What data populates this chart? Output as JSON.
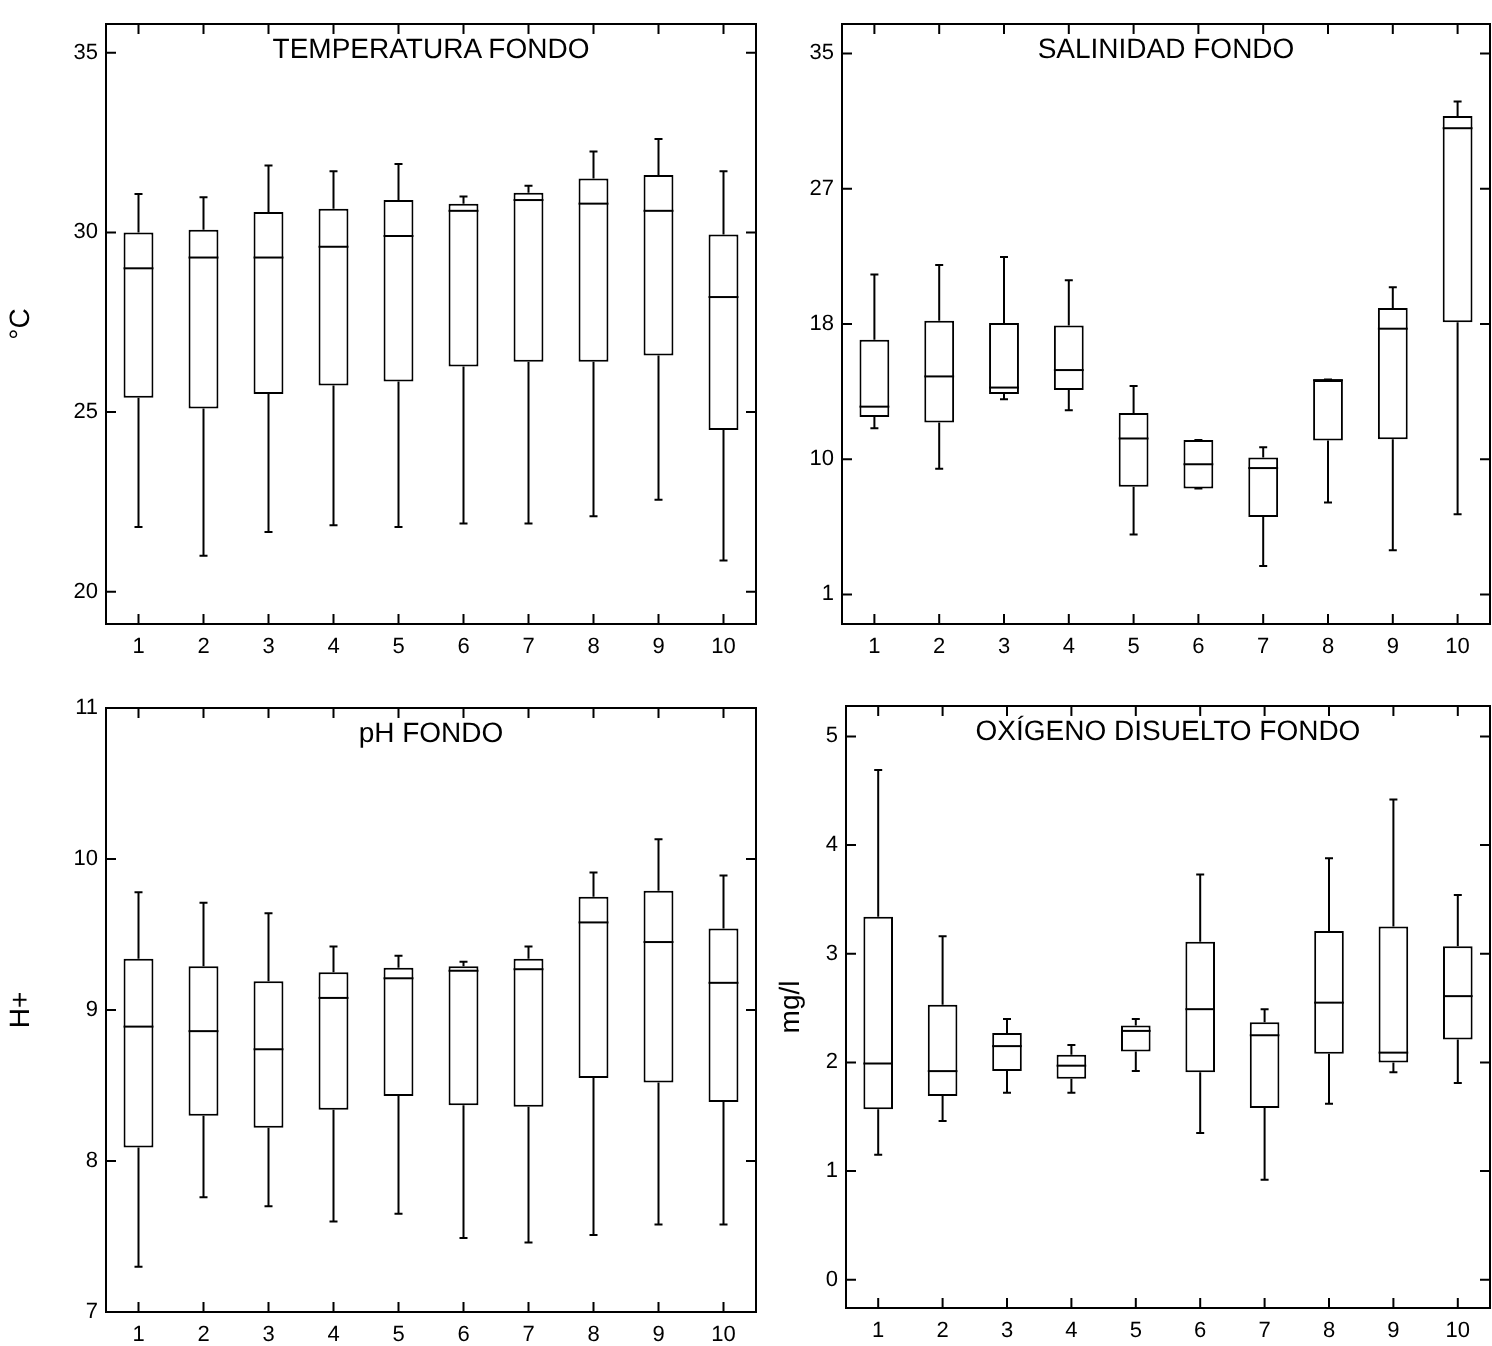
{
  "chart_data": [
    {
      "type": "box",
      "title": "TEMPERATURA FONDO",
      "ylabel": "°C",
      "color": "#000000",
      "grid": false,
      "categories": [
        "1",
        "2",
        "3",
        "4",
        "5",
        "6",
        "7",
        "8",
        "9",
        "10"
      ],
      "ylim": [
        19.1,
        35.8
      ],
      "yticks": [
        20,
        25,
        30,
        35
      ],
      "boxes": [
        {
          "low": 21.8,
          "q1": 25.4,
          "median": 29.0,
          "q3": 30.0,
          "high": 31.07
        },
        {
          "low": 21.0,
          "q1": 25.1,
          "median": 29.3,
          "q3": 30.07,
          "high": 30.98
        },
        {
          "low": 21.66,
          "q1": 25.5,
          "median": 29.3,
          "q3": 30.57,
          "high": 31.86
        },
        {
          "low": 21.85,
          "q1": 25.74,
          "median": 29.6,
          "q3": 30.66,
          "high": 31.7
        },
        {
          "low": 21.8,
          "q1": 25.85,
          "median": 29.9,
          "q3": 30.9,
          "high": 31.9
        },
        {
          "low": 21.9,
          "q1": 26.27,
          "median": 30.6,
          "q3": 30.8,
          "high": 31.0
        },
        {
          "low": 21.9,
          "q1": 26.4,
          "median": 30.9,
          "q3": 31.1,
          "high": 31.3
        },
        {
          "low": 22.1,
          "q1": 26.4,
          "median": 30.8,
          "q3": 31.5,
          "high": 32.25
        },
        {
          "low": 22.56,
          "q1": 26.57,
          "median": 30.6,
          "q3": 31.6,
          "high": 32.6
        },
        {
          "low": 20.87,
          "q1": 24.5,
          "median": 28.2,
          "q3": 29.94,
          "high": 31.7
        }
      ]
    },
    {
      "type": "box",
      "title": "SALINIDAD FONDO",
      "color": "#000000",
      "grid": false,
      "categories": [
        "1",
        "2",
        "3",
        "4",
        "5",
        "6",
        "7",
        "8",
        "9",
        "10"
      ],
      "ylim": [
        -0.86,
        36.85
      ],
      "yticks": [
        1,
        {
          "value": 9.5,
          "label": "10"
        },
        18,
        {
          "value": 26.5,
          "label": "27"
        },
        35
      ],
      "boxes": [
        {
          "low": 11.45,
          "q1": 12.15,
          "median": 12.8,
          "q3": 17.0,
          "high": 21.1
        },
        {
          "low": 8.9,
          "q1": 11.8,
          "median": 14.7,
          "q3": 18.2,
          "high": 21.7
        },
        {
          "low": 13.27,
          "q1": 13.6,
          "median": 14.0,
          "q3": 18.06,
          "high": 22.2
        },
        {
          "low": 12.57,
          "q1": 13.85,
          "median": 15.1,
          "q3": 17.9,
          "high": 20.74
        },
        {
          "low": 4.76,
          "q1": 7.77,
          "median": 10.8,
          "q3": 12.4,
          "high": 14.1
        },
        {
          "low": 7.65,
          "q1": 7.65,
          "median": 9.18,
          "q3": 10.7,
          "high": 10.7
        },
        {
          "low": 2.78,
          "q1": 5.87,
          "median": 8.94,
          "q3": 9.6,
          "high": 10.25
        },
        {
          "low": 6.78,
          "q1": 10.67,
          "median": 14.47,
          "q3": 14.47,
          "high": 14.5
        },
        {
          "low": 3.77,
          "q1": 10.75,
          "median": 17.7,
          "q3": 19.0,
          "high": 20.3
        },
        {
          "low": 6.04,
          "q1": 18.1,
          "median": 30.3,
          "q3": 31.07,
          "high": 31.98
        }
      ]
    },
    {
      "type": "box",
      "title": "pH FONDO",
      "ylabel": "H+",
      "color": "#000000",
      "grid": false,
      "categories": [
        "1",
        "2",
        "3",
        "4",
        "5",
        "6",
        "7",
        "8",
        "9",
        "10"
      ],
      "ylim": [
        7,
        11
      ],
      "yticks": [
        7,
        8,
        9,
        10,
        11
      ],
      "boxes": [
        {
          "low": 7.3,
          "q1": 8.09,
          "median": 8.89,
          "q3": 9.34,
          "high": 9.78
        },
        {
          "low": 7.76,
          "q1": 8.3,
          "median": 8.86,
          "q3": 9.29,
          "high": 9.71
        },
        {
          "low": 7.7,
          "q1": 8.22,
          "median": 8.74,
          "q3": 9.19,
          "high": 9.64
        },
        {
          "low": 7.6,
          "q1": 8.34,
          "median": 9.08,
          "q3": 9.25,
          "high": 9.42
        },
        {
          "low": 7.65,
          "q1": 8.43,
          "median": 9.21,
          "q3": 9.28,
          "high": 9.36
        },
        {
          "low": 7.49,
          "q1": 8.37,
          "median": 9.26,
          "q3": 9.29,
          "high": 9.32
        },
        {
          "low": 7.46,
          "q1": 8.36,
          "median": 9.27,
          "q3": 9.34,
          "high": 9.42
        },
        {
          "low": 7.51,
          "q1": 8.55,
          "median": 9.58,
          "q3": 9.75,
          "high": 9.91
        },
        {
          "low": 7.58,
          "q1": 8.52,
          "median": 9.45,
          "q3": 9.79,
          "high": 10.13
        },
        {
          "low": 7.58,
          "q1": 8.39,
          "median": 9.18,
          "q3": 9.54,
          "high": 9.89
        }
      ]
    },
    {
      "type": "box",
      "title": "OXÍGENO DISUELTO FONDO",
      "ylabel": "mg/l",
      "color": "#000000",
      "grid": false,
      "categories": [
        "1",
        "2",
        "3",
        "4",
        "5",
        "6",
        "7",
        "8",
        "9",
        "10"
      ],
      "ylim": [
        -0.26,
        5.28
      ],
      "yticks": [
        0,
        1,
        2,
        3,
        4,
        5
      ],
      "boxes": [
        {
          "low": 1.15,
          "q1": 1.57,
          "median": 1.99,
          "q3": 3.34,
          "high": 4.69
        },
        {
          "low": 1.46,
          "q1": 1.69,
          "median": 1.92,
          "q3": 2.53,
          "high": 3.16
        },
        {
          "low": 1.72,
          "q1": 1.92,
          "median": 2.15,
          "q3": 2.27,
          "high": 2.4
        },
        {
          "low": 1.72,
          "q1": 1.85,
          "median": 1.97,
          "q3": 2.07,
          "high": 2.16
        },
        {
          "low": 1.92,
          "q1": 2.1,
          "median": 2.29,
          "q3": 2.34,
          "high": 2.4
        },
        {
          "low": 1.35,
          "q1": 1.91,
          "median": 2.49,
          "q3": 3.11,
          "high": 3.73
        },
        {
          "low": 0.92,
          "q1": 1.58,
          "median": 2.25,
          "q3": 2.37,
          "high": 2.49
        },
        {
          "low": 1.62,
          "q1": 2.08,
          "median": 2.55,
          "q3": 3.21,
          "high": 3.88
        },
        {
          "low": 1.91,
          "q1": 2.0,
          "median": 2.09,
          "q3": 3.25,
          "high": 4.42
        },
        {
          "low": 1.81,
          "q1": 2.21,
          "median": 2.61,
          "q3": 3.07,
          "high": 3.54
        }
      ]
    }
  ]
}
